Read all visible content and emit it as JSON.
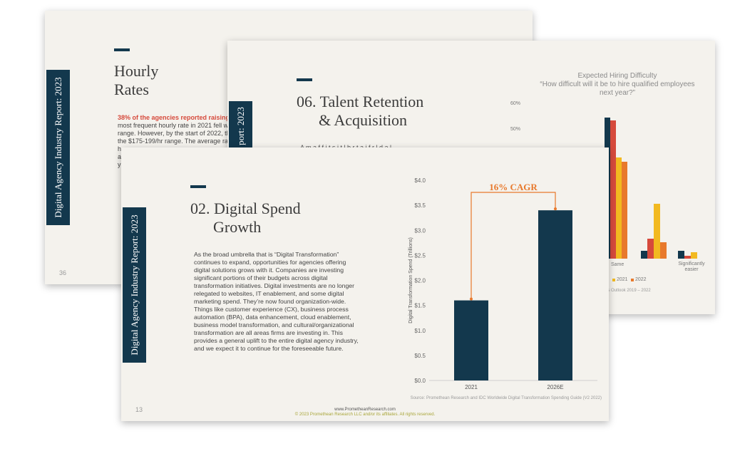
{
  "slide_back": {
    "vertical_label": "Digital Agency Industry Report: 2023",
    "title_line1": "Hourly",
    "title_line2": "Rates",
    "highlight": "38% of the agencies reported raising thei",
    "lines": [
      "most frequent hourly rate in 2021 fell wit",
      "range. However, by the start of 2022, the",
      "the $175-199/hr range. The average rate",
      "h",
      "a",
      "y"
    ],
    "page_number": "36"
  },
  "slide_mid": {
    "vertical_label": "port: 2023",
    "title_line1": "06. Talent Retention",
    "title_line2": "& Acquisition",
    "partial_line": "A m  a  f  f  i  t  s  i  t  l  b  r  t  a  i  f  r  l  d  a  l",
    "chart": {
      "title_line1": "Expected Hiring Difficulty",
      "title_line2": "“How difficult will it be to hire qualified employees",
      "title_line3": "next year?”",
      "y_ticks": [
        "60%",
        "50%"
      ],
      "x_labels": [
        "Same",
        "Significantly easier"
      ],
      "legend": [
        "2021",
        "2022"
      ],
      "source": "es Outlook 2019 – 2022",
      "colors": [
        "#13384d",
        "#d64a3c",
        "#f2b920",
        "#e8792c"
      ]
    }
  },
  "slide_front": {
    "vertical_label": "Digital Agency Industry Report: 2023",
    "title_line1": "02. Digital Spend",
    "title_line2": "Growth",
    "paragraph": [
      "As the broad umbrella that is “Digital Transformation”",
      "continues to expand, opportunities for agencies offering",
      "digital solutions grows with it. Companies are investing",
      "significant portions of their budgets across digital",
      "transformation initiatives. Digital investments are no longer",
      "relegated to websites, IT enablement, and some digital",
      "marketing spend. They’re now found organization-wide.",
      "Things like customer experience (CX), business process",
      "automation (BPA), data enhancement, cloud enablement,",
      "business model transformation, and cultural/organizational",
      "transformation are all areas firms are investing in. This",
      "provides a general uplift to the entire digital agency industry,",
      "and we expect it to continue for the foreseeable future."
    ],
    "page_number": "13",
    "footer_url": "www.PrometheanResearch.com",
    "footer_copy": "© 2023 Promethean Research LLC and/or its affiliates. All rights reserved.",
    "source": "Source: Promethean Research and IDC Worldwide Digital Transformation Spending Guide (V2 2022)"
  },
  "chart_data": {
    "type": "bar",
    "categories": [
      "2021",
      "2026E"
    ],
    "values": [
      1.6,
      3.4
    ],
    "ylabel": "Digital Transformation Spend (Trillions)",
    "ylim": [
      0,
      4
    ],
    "y_ticks": [
      "$0.0",
      "$0.5",
      "$1.0",
      "$1.5",
      "$2.0",
      "$2.5",
      "$3.0",
      "$3.5",
      "$4.0"
    ],
    "annotation": "16% CAGR",
    "grid": false,
    "bar_color": "#13384d",
    "annotation_color": "#e8792c"
  }
}
